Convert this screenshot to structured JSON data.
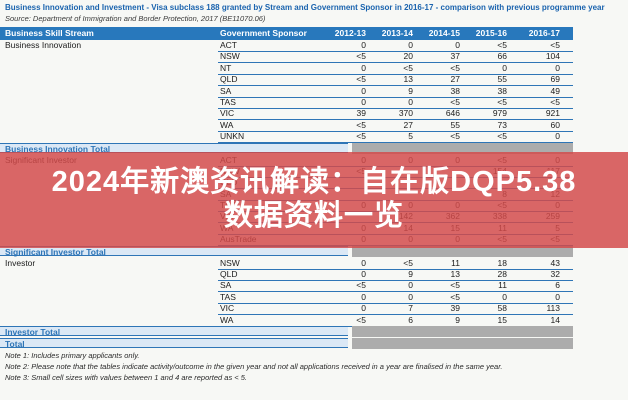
{
  "page": {
    "title": "Business Innovation and Investment - Visa subclass 188 granted by Stream and Government Sponsor in 2016-17 - comparison with previous programme year",
    "source": "Source: Department of Immigration and Border Protection, 2017 (BE11070.06)"
  },
  "table": {
    "headers": [
      "Business Skill Stream",
      "Government Sponsor",
      "2012-13",
      "2013-14",
      "2014-15",
      "2015-16",
      "2016-17"
    ],
    "sections": [
      {
        "stream": "Business Innovation",
        "total_label": "Business Innovation Total",
        "rows": [
          {
            "sponsor": "ACT",
            "values": [
              "0",
              "0",
              "0",
              "<5",
              "<5"
            ]
          },
          {
            "sponsor": "NSW",
            "values": [
              "<5",
              "20",
              "37",
              "66",
              "104"
            ]
          },
          {
            "sponsor": "NT",
            "values": [
              "0",
              "<5",
              "<5",
              "0",
              "0"
            ]
          },
          {
            "sponsor": "QLD",
            "values": [
              "<5",
              "13",
              "27",
              "55",
              "69"
            ]
          },
          {
            "sponsor": "SA",
            "values": [
              "0",
              "9",
              "38",
              "38",
              "49"
            ]
          },
          {
            "sponsor": "TAS",
            "values": [
              "0",
              "0",
              "<5",
              "<5",
              "<5"
            ]
          },
          {
            "sponsor": "VIC",
            "values": [
              "39",
              "370",
              "646",
              "979",
              "921"
            ]
          },
          {
            "sponsor": "WA",
            "values": [
              "<5",
              "27",
              "55",
              "73",
              "60"
            ]
          },
          {
            "sponsor": "UNKN",
            "values": [
              "<5",
              "5",
              "<5",
              "<5",
              "0"
            ]
          }
        ]
      },
      {
        "stream": "Significant Investor",
        "total_label": "Significant Investor Total",
        "rows": [
          {
            "sponsor": "ACT",
            "values": [
              "0",
              "0",
              "0",
              "<5",
              "0"
            ]
          },
          {
            "sponsor": "NSW",
            "values": [
              "<5",
              "",
              "",
              "154",
              "117"
            ]
          },
          {
            "sponsor": "QLD",
            "values": [
              "",
              "",
              "",
              "",
              ""
            ]
          },
          {
            "sponsor": "SA",
            "values": [
              "",
              "",
              "",
              "8",
              "12"
            ]
          },
          {
            "sponsor": "TAS",
            "values": [
              "0",
              "0",
              "0",
              "<5",
              "0"
            ]
          },
          {
            "sponsor": "VIC",
            "values": [
              "",
              "142",
              "362",
              "338",
              "259"
            ]
          },
          {
            "sponsor": "WA",
            "values": [
              "0",
              "14",
              "15",
              "11",
              "5"
            ]
          },
          {
            "sponsor": "AusTrade",
            "values": [
              "0",
              "0",
              "0",
              "<5",
              "<5"
            ]
          }
        ]
      },
      {
        "stream": "Investor",
        "total_label": "Investor Total",
        "rows": [
          {
            "sponsor": "NSW",
            "values": [
              "0",
              "<5",
              "11",
              "18",
              "43"
            ]
          },
          {
            "sponsor": "QLD",
            "values": [
              "0",
              "9",
              "13",
              "28",
              "32"
            ]
          },
          {
            "sponsor": "SA",
            "values": [
              "<5",
              "0",
              "<5",
              "11",
              "6"
            ]
          },
          {
            "sponsor": "TAS",
            "values": [
              "0",
              "0",
              "<5",
              "0",
              "0"
            ]
          },
          {
            "sponsor": "VIC",
            "values": [
              "0",
              "7",
              "39",
              "58",
              "113"
            ]
          },
          {
            "sponsor": "WA",
            "values": [
              "<5",
              "6",
              "9",
              "15",
              "14"
            ]
          }
        ]
      }
    ],
    "grand_total_label": "Total"
  },
  "overlay": {
    "line1": "2024年新澳资讯解读：自在版DQP5.38",
    "line2": "数据资料一览",
    "text_color": "#ffffff",
    "bg_color": "#d34a4a"
  },
  "notes": [
    "Note 1: Includes primary applicants only.",
    "Note 2: Please note that the tables indicate activity/outcome in the given year and not all applications received in a year are finalised in the same year.",
    "Note 3: Small cell sizes with values between 1 and 4 are reported as < 5."
  ],
  "colors": {
    "header_bg": "#2878bc",
    "header_text": "#ffffff",
    "border_blue": "#2e75b6",
    "total_band_bg": "#dbe8f5",
    "total_band_text": "#2e75b6",
    "redacted_gray": "#acacac",
    "title_blue": "#1a63ae",
    "body_text": "#1c1c1c"
  }
}
